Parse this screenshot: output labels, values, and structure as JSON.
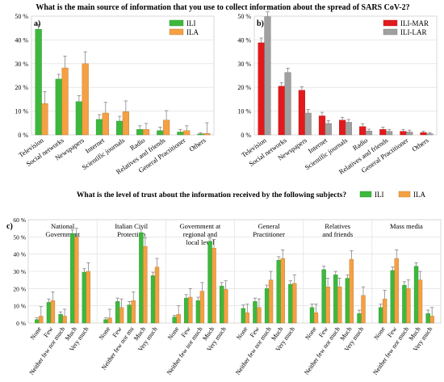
{
  "figure": {
    "title_top": "What is the main source of information that you use to collect information about the spread of SARS CoV-2?",
    "title_bottom": "What is the level of trust about the information received by the following subjects?"
  },
  "chart_data": [
    {
      "type": "bar",
      "panel_label": "a)",
      "categories": [
        "Television",
        "Social networks",
        "Newspapers",
        "Internet",
        "Scientific journals",
        "Radio",
        "Relatives and friends",
        "General Practitioner",
        "Others"
      ],
      "series": [
        {
          "name": "ILI",
          "color": "#3cb93c",
          "values": [
            44.5,
            23.5,
            14,
            6.5,
            5.8,
            2.3,
            1.8,
            1.2,
            0.4
          ],
          "errors": [
            2,
            2,
            2.5,
            2,
            2,
            1.5,
            1.5,
            1,
            0.5
          ]
        },
        {
          "name": "ILA",
          "color": "#f4a043",
          "values": [
            13.2,
            28.2,
            30,
            9.2,
            9.8,
            2.3,
            6.2,
            1.8,
            0.6
          ],
          "errors": [
            5,
            5,
            5,
            4.5,
            4.5,
            2.5,
            4,
            2,
            4.5
          ]
        }
      ],
      "ylim": [
        0,
        50
      ],
      "yticks": [
        "0 %",
        "10 %",
        "20 %",
        "30 %",
        "40 %",
        "50 %"
      ],
      "legend": "top-right",
      "grid": true
    },
    {
      "type": "bar",
      "panel_label": "b)",
      "categories": [
        "Television",
        "Social networks",
        "Newspapers",
        "Internet",
        "Scientific journals",
        "Radio",
        "Relatives and friends",
        "General Practitioner",
        "Others"
      ],
      "series": [
        {
          "name": "ILI-MAR",
          "color": "#e31a1c",
          "values": [
            38.8,
            20.5,
            18.8,
            8,
            6.2,
            3.5,
            2.3,
            1.5,
            1
          ],
          "errors": [
            2,
            1.5,
            1.5,
            1.5,
            1.2,
            1.2,
            1,
            0.8,
            0.6
          ]
        },
        {
          "name": "ILI-LAR",
          "color": "#a0a0a0",
          "values": [
            49.8,
            26.3,
            9.2,
            4.8,
            5.3,
            1.6,
            1.5,
            1.2,
            0.5
          ],
          "errors": [
            2,
            1.8,
            1.5,
            1.2,
            1.2,
            0.8,
            0.8,
            0.8,
            0.5
          ]
        }
      ],
      "ylim": [
        0,
        50
      ],
      "yticks": [
        "0 %",
        "10 %",
        "20 %",
        "30 %",
        "40 %",
        "50 %"
      ],
      "legend": "top-right",
      "grid": true
    },
    {
      "type": "bar",
      "panel_label": "c)",
      "groups": [
        "National Government",
        "Italian Civil Protection",
        "Government at regional and local level",
        "General Practitioner",
        "Relatives and friends",
        "Mass media"
      ],
      "categories": [
        "None",
        "Few",
        "Neither few nor much",
        "Much",
        "Very much"
      ],
      "category_labels": [
        "None",
        "Few",
        "Neither few nor much",
        "Much",
        "Very much"
      ],
      "category_labels_clipped": [
        "None",
        "Few",
        "Neither few nor mu",
        "Much",
        "Very much"
      ],
      "series": [
        {
          "name": "ILI",
          "color": "#3cb93c",
          "values": [
            [
              2,
              12,
              5,
              52,
              29.5
            ],
            [
              2,
              12.5,
              10.5,
              52.5,
              27.5
            ],
            [
              3.5,
              14.5,
              13,
              47.5,
              21.5
            ],
            [
              8.5,
              12.5,
              20,
              36.5,
              22.5
            ],
            [
              9,
              31,
              28,
              26,
              5.5
            ],
            [
              9,
              30.5,
              22,
              33,
              5.5
            ]
          ],
          "errors": [
            [
              1,
              2,
              1.5,
              2,
              2
            ],
            [
              1,
              2,
              2,
              2,
              2
            ],
            [
              1,
              2,
              2,
              2,
              2
            ],
            [
              2,
              2,
              2,
              2,
              2
            ],
            [
              2,
              2,
              2,
              2,
              2
            ],
            [
              2,
              2,
              2,
              2,
              2
            ]
          ]
        },
        {
          "name": "ILA",
          "color": "#f4a043",
          "values": [
            [
              4,
              13,
              4,
              50,
              30
            ],
            [
              3,
              9,
              13,
              44.5,
              32.5
            ],
            [
              5,
              15,
              18.5,
              43.5,
              19.5
            ],
            [
              6,
              9,
              25,
              37.5,
              23
            ],
            [
              6,
              21,
              21,
              37,
              16
            ],
            [
              14,
              37.5,
              20,
              25,
              4
            ]
          ],
          "errors": [
            [
              5.5,
              5,
              4,
              5,
              5
            ],
            [
              5,
              5,
              5,
              5,
              5
            ],
            [
              5,
              5,
              5,
              5,
              5
            ],
            [
              5,
              5,
              5,
              5,
              5
            ],
            [
              5,
              5,
              5,
              5,
              5
            ],
            [
              5,
              5,
              5,
              5,
              5
            ]
          ]
        }
      ],
      "ylim": [
        0,
        60
      ],
      "yticks": [
        "0 %",
        "10 %",
        "20 %",
        "30 %",
        "40 %",
        "50 %",
        "60 %"
      ],
      "legend": "top-right",
      "grid": true
    }
  ]
}
